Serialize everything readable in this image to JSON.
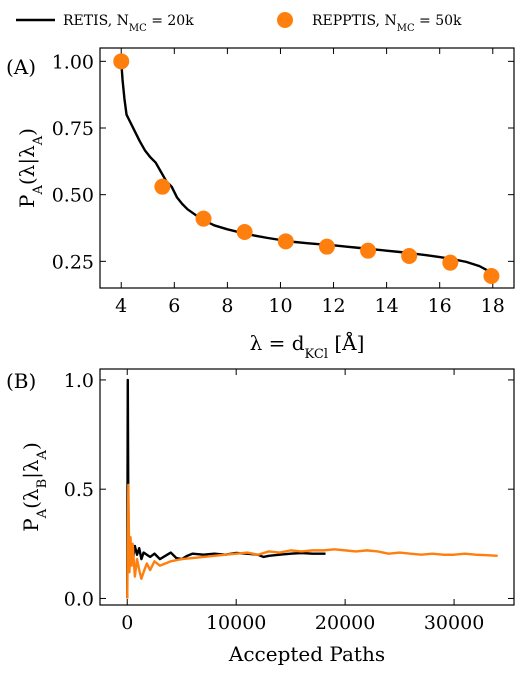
{
  "legend": [
    {
      "label": "RETIS, N",
      "sub": "MC",
      "tail": " = 20k",
      "color": "#000000",
      "marker": "line"
    },
    {
      "label": "REPPTIS, N",
      "sub": "MC",
      "tail": " = 50k",
      "color": "#ff7f0e",
      "marker": "circle"
    }
  ],
  "chart_data": [
    {
      "type": "line",
      "panel_label": "(A)",
      "xlabel": "λ = d",
      "xlabel_sub": "KCl",
      "xlabel_tail": " [Å]",
      "ylabel": "P_A(λ|λ_A)",
      "xlim": [
        3.2,
        18.8
      ],
      "ylim": [
        0.15,
        1.05
      ],
      "xticks": [
        4,
        6,
        8,
        10,
        12,
        14,
        16,
        18
      ],
      "yticks": [
        0.25,
        0.5,
        0.75,
        1.0
      ],
      "ytick_labels": [
        "0.25",
        "0.50",
        "0.75",
        "1.00"
      ],
      "series": [
        {
          "name": "RETIS",
          "color": "#000000",
          "style": "line",
          "x": [
            4.0,
            4.05,
            4.12,
            4.2,
            4.3,
            4.5,
            4.7,
            4.9,
            5.1,
            5.3,
            5.5,
            5.7,
            5.9,
            6.1,
            6.3,
            6.5,
            7.0,
            7.5,
            8.0,
            8.5,
            9.0,
            9.5,
            10.0,
            10.5,
            11.0,
            11.5,
            12.0,
            12.5,
            13.0,
            13.5,
            14.0,
            14.5,
            15.0,
            15.5,
            16.0,
            16.5,
            17.0,
            17.5,
            18.0
          ],
          "y": [
            1.0,
            0.93,
            0.86,
            0.8,
            0.78,
            0.74,
            0.7,
            0.665,
            0.64,
            0.62,
            0.585,
            0.55,
            0.53,
            0.49,
            0.465,
            0.445,
            0.41,
            0.385,
            0.37,
            0.358,
            0.347,
            0.338,
            0.33,
            0.323,
            0.318,
            0.314,
            0.31,
            0.305,
            0.3,
            0.295,
            0.29,
            0.285,
            0.279,
            0.273,
            0.266,
            0.258,
            0.248,
            0.232,
            0.205
          ]
        },
        {
          "name": "REPPTIS",
          "color": "#ff7f0e",
          "style": "scatter",
          "x": [
            4.0,
            5.55,
            7.1,
            8.65,
            10.2,
            11.75,
            13.3,
            14.85,
            16.4,
            17.95
          ],
          "y": [
            1.0,
            0.53,
            0.41,
            0.36,
            0.325,
            0.305,
            0.29,
            0.27,
            0.245,
            0.195
          ]
        }
      ]
    },
    {
      "type": "line",
      "panel_label": "(B)",
      "xlabel": "Accepted Paths",
      "ylabel": "P_A(λ_B|λ_A)",
      "xlim": [
        -2500,
        35500
      ],
      "ylim": [
        -0.03,
        1.05
      ],
      "xticks": [
        0,
        10000,
        20000,
        30000
      ],
      "yticks": [
        0.0,
        0.5,
        1.0
      ],
      "ytick_labels": [
        "0.0",
        "0.5",
        "1.0"
      ],
      "series": [
        {
          "name": "RETIS",
          "color": "#000000",
          "style": "line",
          "x": [
            0,
            50,
            100,
            150,
            200,
            300,
            400,
            500,
            700,
            900,
            1100,
            1300,
            1500,
            1800,
            2100,
            2500,
            3000,
            3500,
            4000,
            4500,
            5000,
            5500,
            6000,
            7000,
            8000,
            9000,
            10000,
            11000,
            12000,
            12500,
            13000,
            14000,
            15000,
            16000,
            17000,
            18200
          ],
          "y": [
            0.0,
            1.0,
            0.4,
            0.15,
            0.28,
            0.2,
            0.25,
            0.17,
            0.24,
            0.2,
            0.23,
            0.18,
            0.21,
            0.2,
            0.19,
            0.205,
            0.18,
            0.195,
            0.21,
            0.185,
            0.18,
            0.195,
            0.205,
            0.2,
            0.205,
            0.2,
            0.208,
            0.205,
            0.2,
            0.19,
            0.195,
            0.2,
            0.205,
            0.208,
            0.205,
            0.205
          ]
        },
        {
          "name": "REPPTIS",
          "color": "#ff7f0e",
          "style": "line",
          "x": [
            0,
            100,
            200,
            300,
            400,
            500,
            700,
            900,
            1100,
            1300,
            1500,
            1800,
            2100,
            2500,
            3000,
            3500,
            4000,
            5000,
            6000,
            7000,
            8000,
            9000,
            10000,
            11000,
            12000,
            13000,
            14000,
            15000,
            16000,
            17000,
            18000,
            19000,
            20000,
            21000,
            22000,
            23000,
            24000,
            25000,
            26000,
            27000,
            28000,
            29000,
            30000,
            31000,
            32000,
            33000,
            34000
          ],
          "y": [
            0.0,
            0.52,
            0.12,
            0.28,
            0.15,
            0.25,
            0.1,
            0.18,
            0.13,
            0.09,
            0.12,
            0.16,
            0.13,
            0.17,
            0.15,
            0.16,
            0.17,
            0.18,
            0.185,
            0.19,
            0.195,
            0.2,
            0.205,
            0.21,
            0.2,
            0.215,
            0.21,
            0.22,
            0.215,
            0.22,
            0.22,
            0.225,
            0.22,
            0.215,
            0.22,
            0.215,
            0.205,
            0.21,
            0.205,
            0.2,
            0.205,
            0.2,
            0.2,
            0.205,
            0.2,
            0.198,
            0.195
          ]
        }
      ]
    }
  ]
}
